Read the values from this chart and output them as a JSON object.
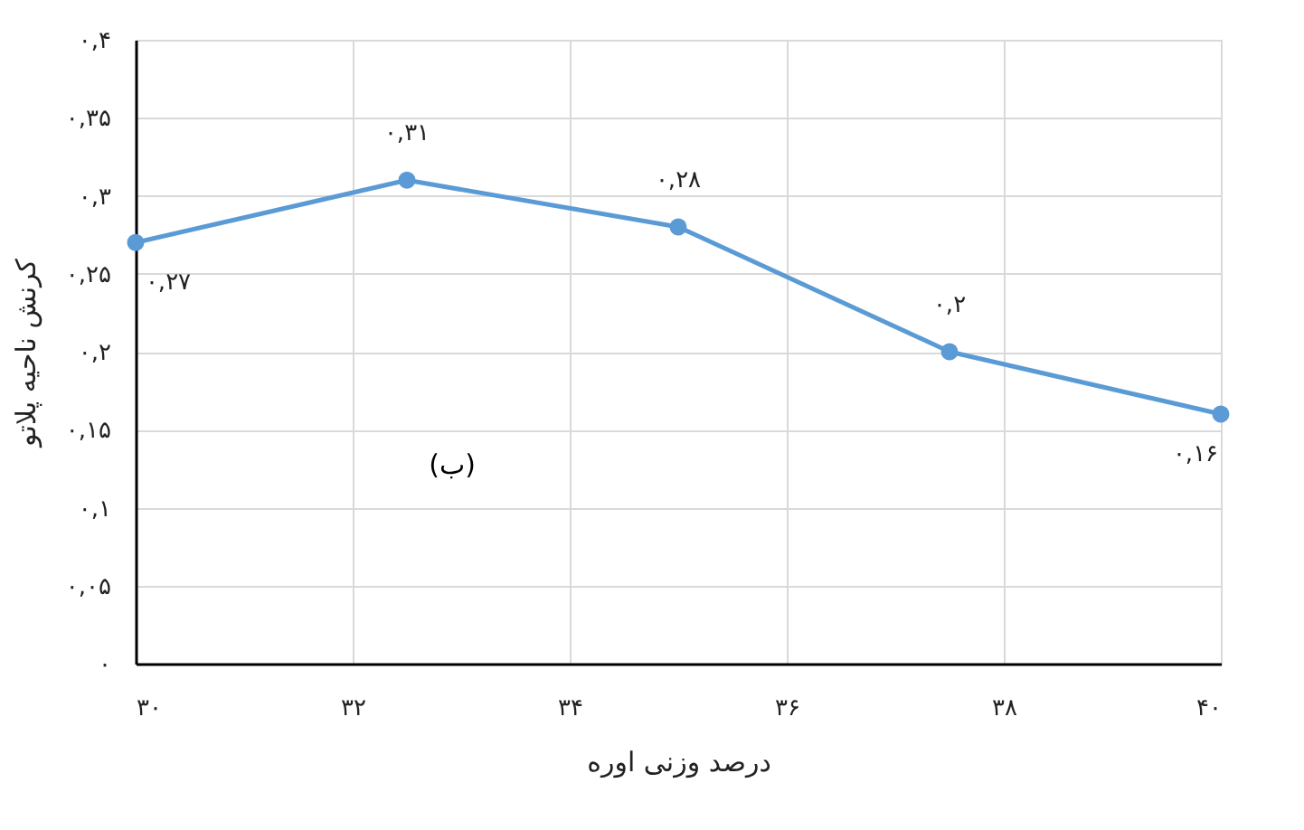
{
  "chart_data": {
    "type": "line",
    "xlabel": "درصد وزنی اوره",
    "ylabel": "کرنش ناحیه پلاتو",
    "x": [
      30,
      32.5,
      35,
      37.5,
      40
    ],
    "series": [
      {
        "color": "#5b9bd5",
        "values": [
          0.27,
          0.31,
          0.28,
          0.2,
          0.16
        ],
        "value_labels": [
          "۰,۲۷",
          "۰,۳۱",
          "۰,۲۸",
          "۰,۲",
          "۰,۱۶"
        ]
      }
    ],
    "xlim": [
      30,
      40
    ],
    "xticks": [
      {
        "value": 30,
        "label": "۳۰"
      },
      {
        "value": 32,
        "label": "۳۲"
      },
      {
        "value": 34,
        "label": "۳۴"
      },
      {
        "value": 36,
        "label": "۳۶"
      },
      {
        "value": 38,
        "label": "۳۸"
      },
      {
        "value": 40,
        "label": "۴۰"
      }
    ],
    "ylim": [
      0,
      0.4
    ],
    "yticks": [
      {
        "value": 0,
        "label": "۰"
      },
      {
        "value": 0.05,
        "label": "۰,۰۵"
      },
      {
        "value": 0.1,
        "label": "۰,۱"
      },
      {
        "value": 0.15,
        "label": "۰,۱۵"
      },
      {
        "value": 0.2,
        "label": "۰,۲"
      },
      {
        "value": 0.25,
        "label": "۰,۲۵"
      },
      {
        "value": 0.3,
        "label": "۰,۳"
      },
      {
        "value": 0.35,
        "label": "۰,۳۵"
      },
      {
        "value": 0.4,
        "label": "۰,۴"
      }
    ],
    "annotations": [
      "(ب)"
    ],
    "grid": true,
    "marker": "circle",
    "line_style": "solid"
  }
}
